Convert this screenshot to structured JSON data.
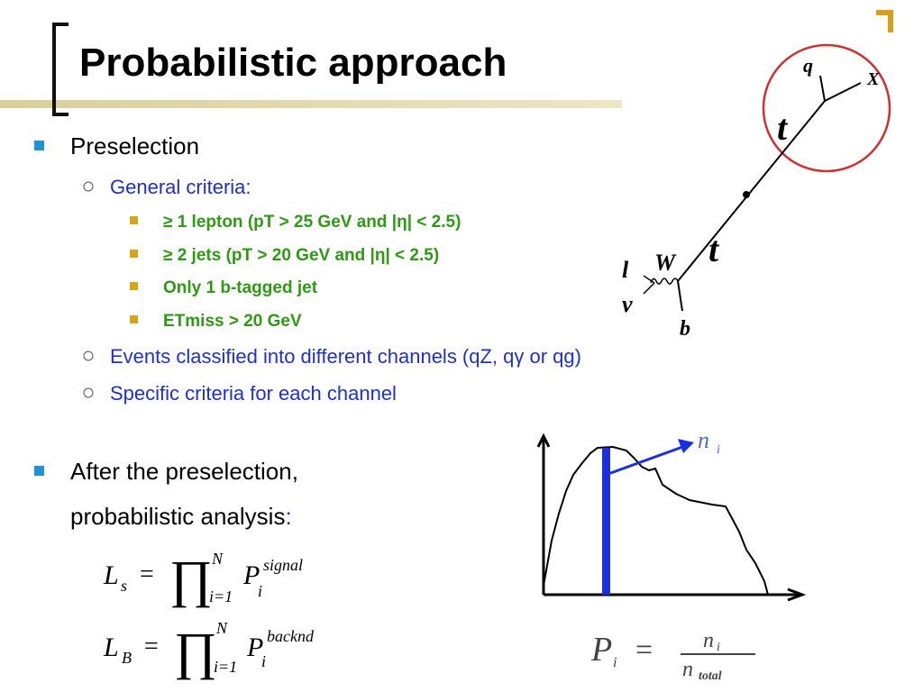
{
  "title": "Probabilistic approach",
  "bullets": [
    {
      "text": "Preselection",
      "items": [
        {
          "text": "General criteria:",
          "items": [
            "≥ 1 lepton (pT > 25 GeV and |η| < 2.5)",
            "≥ 2 jets (pT > 20 GeV and |η| < 2.5)",
            "Only 1 b-tagged jet",
            "ETmiss > 20 GeV"
          ]
        },
        {
          "text": "Events classified into different channels (qZ, qγ or qg)"
        },
        {
          "text": "Specific criteria for each channel"
        }
      ]
    },
    {
      "lines": [
        "After the preselection,",
        "probabilistic analysis"
      ],
      "colon": ":"
    }
  ],
  "formulas": [
    {
      "symbol": "L",
      "sub": "s",
      "equals": "=",
      "product": "∏",
      "upper": "N",
      "lower": "i=1",
      "term": "P",
      "term_sub": "i",
      "term_sup": "signal"
    },
    {
      "symbol": "L",
      "sub": "B",
      "equals": "=",
      "product": "∏",
      "upper": "N",
      "lower": "i=1",
      "term": "P",
      "term_sub": "i",
      "term_sup": "backnd"
    }
  ],
  "diagram": {
    "labels": [
      "q",
      "X",
      "t",
      "t",
      "W",
      "l",
      "ν",
      "b"
    ]
  },
  "histogram": {
    "marker": "n",
    "marker_sub": "i",
    "formula": {
      "lhs": "P",
      "lhs_sub": "i",
      "equals": "=",
      "num": "n",
      "num_sub": "i",
      "den": "n",
      "den_sub": "total"
    }
  }
}
